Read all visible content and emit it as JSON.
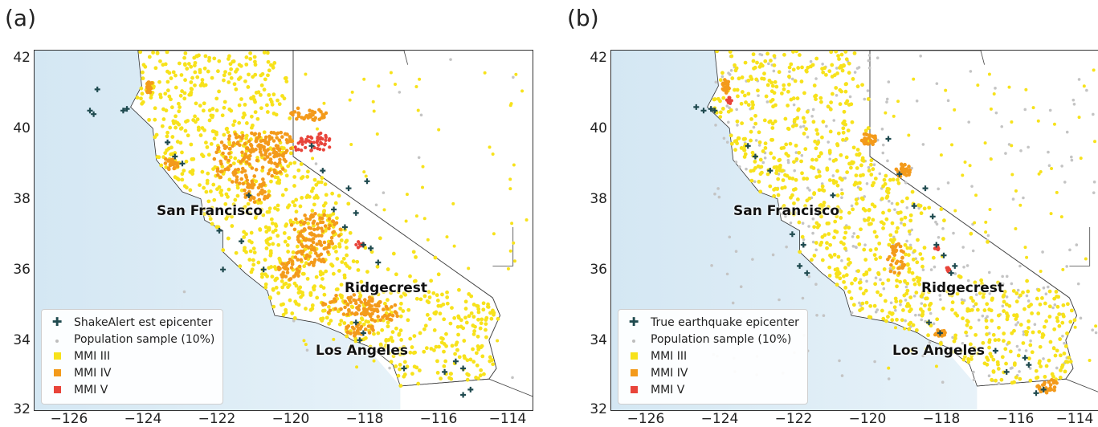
{
  "figure": {
    "y_ticks": [
      "42",
      "40",
      "38",
      "36",
      "34",
      "32"
    ],
    "x_ticks": [
      "−126",
      "−124",
      "−122",
      "−120",
      "−118",
      "−116",
      "−114"
    ]
  },
  "panels": [
    {
      "label": "(a)",
      "legend": {
        "epicenter": "ShakeAlert est epicenter",
        "population": "Population sample (10%)",
        "mmi3": "MMI III",
        "mmi4": "MMI IV",
        "mmi5": "MMI V"
      },
      "cities": {
        "sf": "San Francisco",
        "ridgecrest": "Ridgecrest",
        "la": "Los Angeles"
      }
    },
    {
      "label": "(b)",
      "legend": {
        "epicenter": "True earthquake epicenter",
        "population": "Population sample (10%)",
        "mmi3": "MMI III",
        "mmi4": "MMI IV",
        "mmi5": "MMI V"
      },
      "cities": {
        "sf": "San Francisco",
        "ridgecrest": "Ridgecrest",
        "la": "Los Angeles"
      }
    }
  ],
  "colors": {
    "mmi3": "#f7e21b",
    "mmi4": "#f39a1b",
    "mmi5": "#e8443a",
    "population": "#c4c4c4",
    "epicenter": "#1f4a4f",
    "ocean": "#dfeef6"
  },
  "map_extent": {
    "lon": [
      -127,
      -113.5
    ],
    "lat": [
      32,
      42
    ]
  },
  "epicenters": {
    "a": [
      [
        -125.3,
        40.9
      ],
      [
        -125.5,
        40.3
      ],
      [
        -125.4,
        40.2
      ],
      [
        -124.6,
        40.3
      ],
      [
        -124.5,
        40.35
      ],
      [
        -123.4,
        39.4
      ],
      [
        -123.2,
        39.0
      ],
      [
        -123.0,
        38.8
      ],
      [
        -121.2,
        37.9
      ],
      [
        -122.0,
        36.9
      ],
      [
        -121.4,
        36.6
      ],
      [
        -121.9,
        35.8
      ],
      [
        -120.8,
        35.8
      ],
      [
        -119.5,
        39.3
      ],
      [
        -119.2,
        38.6
      ],
      [
        -118.5,
        38.1
      ],
      [
        -118.0,
        38.3
      ],
      [
        -118.9,
        37.5
      ],
      [
        -118.6,
        37.0
      ],
      [
        -118.3,
        37.4
      ],
      [
        -118.1,
        36.5
      ],
      [
        -117.9,
        36.4
      ],
      [
        -117.7,
        36.0
      ],
      [
        -118.3,
        34.3
      ],
      [
        -118.1,
        34.0
      ],
      [
        -118.2,
        33.8
      ],
      [
        -117.0,
        33.0
      ],
      [
        -115.6,
        33.2
      ],
      [
        -115.4,
        33.0
      ],
      [
        -115.9,
        32.9
      ],
      [
        -115.2,
        32.4
      ],
      [
        -115.4,
        32.25
      ]
    ],
    "b": [
      [
        -124.7,
        40.4
      ],
      [
        -124.5,
        40.3
      ],
      [
        -124.3,
        40.35
      ],
      [
        -124.2,
        40.3
      ],
      [
        -123.3,
        39.3
      ],
      [
        -123.1,
        39.0
      ],
      [
        -122.7,
        38.6
      ],
      [
        -121.4,
        37.4
      ],
      [
        -121.0,
        37.9
      ],
      [
        -122.1,
        36.8
      ],
      [
        -121.8,
        36.5
      ],
      [
        -121.9,
        35.9
      ],
      [
        -121.7,
        35.7
      ],
      [
        -119.5,
        39.5
      ],
      [
        -119.2,
        38.5
      ],
      [
        -118.5,
        38.1
      ],
      [
        -118.3,
        37.3
      ],
      [
        -118.8,
        37.6
      ],
      [
        -118.2,
        36.5
      ],
      [
        -118.0,
        36.2
      ],
      [
        -117.7,
        35.9
      ],
      [
        -117.8,
        35.7
      ],
      [
        -118.4,
        34.3
      ],
      [
        -118.1,
        34.0
      ],
      [
        -116.6,
        33.5
      ],
      [
        -115.8,
        33.3
      ],
      [
        -115.7,
        33.1
      ],
      [
        -116.3,
        32.9
      ],
      [
        -115.3,
        32.4
      ],
      [
        -115.5,
        32.3
      ]
    ]
  },
  "mmi4_blobs": {
    "a": [
      [
        -121.2,
        38.9,
        1.0,
        0.8
      ],
      [
        -120.6,
        39.4,
        0.6,
        0.4
      ],
      [
        -121.0,
        38.0,
        0.4,
        0.3
      ],
      [
        -119.4,
        36.9,
        0.7,
        0.5
      ],
      [
        -119.5,
        36.3,
        0.5,
        0.4
      ],
      [
        -120.1,
        35.8,
        0.3,
        0.3
      ],
      [
        -118.5,
        34.8,
        0.8,
        0.3
      ],
      [
        -117.6,
        34.6,
        0.5,
        0.3
      ],
      [
        -118.2,
        34.1,
        0.4,
        0.2
      ],
      [
        -119.6,
        40.2,
        0.5,
        0.2
      ],
      [
        -123.3,
        38.8,
        0.2,
        0.2
      ],
      [
        -123.9,
        41.0,
        0.1,
        0.2
      ]
    ],
    "b": [
      [
        -120.0,
        39.5,
        0.25,
        0.2
      ],
      [
        -119.3,
        36.1,
        0.25,
        0.45
      ],
      [
        -119.1,
        38.6,
        0.2,
        0.2
      ],
      [
        -118.1,
        34.0,
        0.15,
        0.1
      ],
      [
        -115.2,
        32.5,
        0.3,
        0.2
      ],
      [
        -123.9,
        41.0,
        0.1,
        0.2
      ]
    ]
  },
  "mmi5_blobs": {
    "a": [
      [
        -119.5,
        39.3,
        0.5,
        0.3
      ],
      [
        -119.2,
        39.5,
        0.2,
        0.2
      ],
      [
        -118.2,
        36.5,
        0.1,
        0.1
      ]
    ],
    "b": [
      [
        -123.8,
        40.6,
        0.08,
        0.1
      ],
      [
        -118.2,
        36.4,
        0.06,
        0.06
      ],
      [
        -117.9,
        35.8,
        0.06,
        0.06
      ]
    ]
  }
}
